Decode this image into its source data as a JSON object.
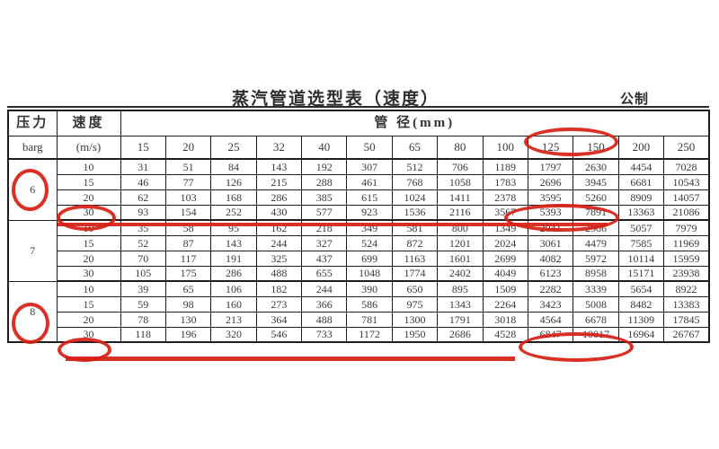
{
  "page": {
    "title": "蒸汽管道选型表（速度）",
    "unit_label": "公制"
  },
  "table": {
    "header": {
      "pressure_label": "压力",
      "pressure_unit": "barg",
      "velocity_label": "速度",
      "velocity_unit": "(m/s)",
      "diameter_label": "管 径(mm)",
      "diameters": [
        "15",
        "20",
        "25",
        "32",
        "40",
        "50",
        "65",
        "80",
        "100",
        "125",
        "150",
        "200",
        "250"
      ]
    },
    "blocks": [
      {
        "pressure": "6",
        "rows": [
          {
            "velocity": "10",
            "values": [
              31,
              51,
              84,
              143,
              192,
              307,
              512,
              706,
              1189,
              1797,
              2630,
              4454,
              7028
            ]
          },
          {
            "velocity": "15",
            "values": [
              46,
              77,
              126,
              215,
              288,
              461,
              768,
              1058,
              1783,
              2696,
              3945,
              6681,
              10543
            ]
          },
          {
            "velocity": "20",
            "values": [
              62,
              103,
              168,
              286,
              385,
              615,
              1024,
              1411,
              2378,
              3595,
              5260,
              8909,
              14057
            ]
          },
          {
            "velocity": "30",
            "values": [
              93,
              154,
              252,
              430,
              577,
              923,
              1536,
              2116,
              3567,
              5393,
              7891,
              13363,
              21086
            ]
          }
        ]
      },
      {
        "pressure": "7",
        "rows": [
          {
            "velocity": "10",
            "values": [
              35,
              58,
              95,
              162,
              218,
              349,
              581,
              800,
              1349,
              2041,
              2986,
              5057,
              7979
            ]
          },
          {
            "velocity": "15",
            "values": [
              52,
              87,
              143,
              244,
              327,
              524,
              872,
              1201,
              2024,
              3061,
              4479,
              7585,
              11969
            ]
          },
          {
            "velocity": "20",
            "values": [
              70,
              117,
              191,
              325,
              437,
              699,
              1163,
              1601,
              2699,
              4082,
              5972,
              10114,
              15959
            ]
          },
          {
            "velocity": "30",
            "values": [
              105,
              175,
              286,
              488,
              655,
              1048,
              1774,
              2402,
              4049,
              6123,
              8958,
              15171,
              23938
            ]
          }
        ]
      },
      {
        "pressure": "8",
        "rows": [
          {
            "velocity": "10",
            "values": [
              39,
              65,
              106,
              182,
              244,
              390,
              650,
              895,
              1509,
              2282,
              3339,
              5654,
              8922
            ]
          },
          {
            "velocity": "15",
            "values": [
              59,
              98,
              160,
              273,
              366,
              586,
              975,
              1343,
              2264,
              3423,
              5008,
              8482,
              13383
            ]
          },
          {
            "velocity": "20",
            "values": [
              78,
              130,
              213,
              364,
              488,
              781,
              1300,
              1791,
              3018,
              4564,
              6678,
              11309,
              17845
            ]
          },
          {
            "velocity": "30",
            "values": [
              118,
              196,
              320,
              546,
              733,
              1172,
              1950,
              2686,
              4528,
              6847,
              10017,
              16964,
              26767
            ]
          }
        ]
      }
    ]
  },
  "annotations": {
    "shape_color": "#d81e14",
    "items": [
      {
        "id": "circle-pressure-6",
        "type": "oval",
        "target": "pressure 6 barg"
      },
      {
        "id": "circle-velocity-30-p6",
        "type": "oval",
        "target": "velocity 30 m/s at 6 barg"
      },
      {
        "id": "underline-row-30-p6",
        "type": "line",
        "target": "row 30 m/s at 6 barg"
      },
      {
        "id": "circle-5393-7891",
        "type": "oval",
        "target": "values 5393 and 7891"
      },
      {
        "id": "circle-header-125-150",
        "type": "oval",
        "target": "diameter headers 125 and 150"
      },
      {
        "id": "circle-pressure-8",
        "type": "oval",
        "target": "pressure 8 barg"
      },
      {
        "id": "circle-velocity-30-p8",
        "type": "oval",
        "target": "velocity 30 m/s at 8 barg"
      },
      {
        "id": "underline-row-30-p8",
        "type": "line",
        "target": "row 30 m/s at 8 barg"
      },
      {
        "id": "circle-6847-10017",
        "type": "oval",
        "target": "values 6847 and 10017"
      }
    ]
  }
}
